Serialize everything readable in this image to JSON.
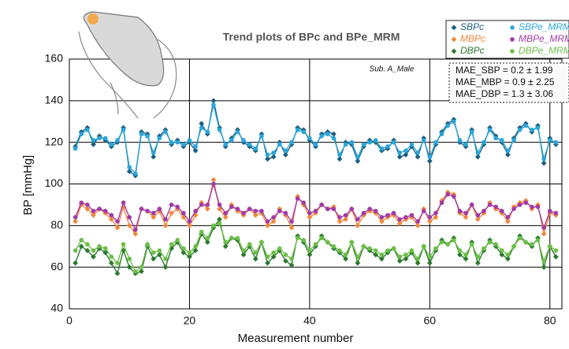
{
  "chart_data": {
    "type": "line",
    "title": "Trend plots of BPc and BPe_MRM",
    "x_label": "Measurement number",
    "y_label": "BP  [mmHg]",
    "annotations": [
      "Sub. A_Male",
      "MAE_SBP = 0.2 ± 1.99",
      "MAE_MBP = 0.9 ± 2.25",
      "MAE_DBP = 1.3 ± 3.06"
    ],
    "x": [
      1,
      2,
      3,
      4,
      5,
      6,
      7,
      8,
      9,
      10,
      11,
      12,
      13,
      14,
      15,
      16,
      17,
      18,
      19,
      20,
      21,
      22,
      23,
      24,
      25,
      26,
      27,
      28,
      29,
      30,
      31,
      32,
      33,
      34,
      35,
      36,
      37,
      38,
      39,
      40,
      41,
      42,
      43,
      44,
      45,
      46,
      47,
      48,
      49,
      50,
      51,
      52,
      53,
      54,
      55,
      56,
      57,
      58,
      59,
      60,
      61,
      62,
      63,
      64,
      65,
      66,
      67,
      68,
      69,
      70,
      71,
      72,
      73,
      74,
      75,
      76,
      77,
      78,
      79,
      80,
      81
    ],
    "xlim": [
      0,
      82
    ],
    "xticks": [
      0,
      20,
      40,
      60,
      80
    ],
    "ylim": [
      40,
      160
    ],
    "yticks": [
      40,
      60,
      80,
      100,
      120,
      140,
      160
    ],
    "grid": true,
    "legend": "upper right",
    "series": [
      {
        "name": "SBPc",
        "color": "#1d5f80",
        "marker": "diamond",
        "values": [
          118,
          125,
          127,
          119,
          123,
          121,
          118,
          120,
          127,
          106,
          104,
          125,
          124,
          113,
          123,
          126,
          119,
          121,
          118,
          120,
          116,
          129,
          124,
          140,
          127,
          118,
          122,
          126,
          120,
          118,
          116,
          124,
          112,
          113,
          120,
          114,
          119,
          127,
          126,
          121,
          118,
          124,
          125,
          124,
          112,
          120,
          119,
          111,
          118,
          121,
          120,
          116,
          117,
          121,
          113,
          114,
          118,
          113,
          122,
          111,
          119,
          125,
          129,
          131,
          120,
          118,
          126,
          113,
          119,
          127,
          123,
          120,
          114,
          122,
          127,
          129,
          125,
          128,
          110,
          122,
          119
        ]
      },
      {
        "name": "SBPe_MRM",
        "color": "#2aa6d9",
        "marker": "circle",
        "values": [
          117,
          124,
          126,
          121,
          122,
          122,
          119,
          121,
          126,
          108,
          105,
          124,
          123,
          115,
          122,
          125,
          120,
          120,
          119,
          121,
          118,
          127,
          125,
          138,
          126,
          119,
          121,
          125,
          121,
          119,
          117,
          123,
          114,
          115,
          119,
          116,
          120,
          126,
          125,
          122,
          119,
          123,
          124,
          122,
          114,
          119,
          120,
          113,
          119,
          120,
          121,
          117,
          118,
          120,
          115,
          116,
          119,
          115,
          121,
          113,
          120,
          124,
          128,
          130,
          121,
          119,
          125,
          115,
          120,
          126,
          122,
          121,
          116,
          121,
          126,
          128,
          126,
          127,
          112,
          121,
          120
        ]
      },
      {
        "name": "MBPc",
        "color": "#f0883a",
        "marker": "diamond",
        "values": [
          82,
          90,
          88,
          85,
          88,
          86,
          83,
          79,
          89,
          80,
          76,
          88,
          87,
          84,
          87,
          80,
          86,
          88,
          84,
          80,
          85,
          91,
          88,
          102,
          88,
          84,
          90,
          87,
          85,
          88,
          85,
          86,
          80,
          82,
          88,
          85,
          79,
          94,
          90,
          84,
          86,
          90,
          88,
          89,
          82,
          83,
          88,
          80,
          85,
          87,
          86,
          82,
          84,
          85,
          81,
          83,
          84,
          80,
          88,
          82,
          84,
          92,
          96,
          95,
          86,
          84,
          90,
          83,
          86,
          91,
          88,
          86,
          82,
          89,
          91,
          92,
          88,
          90,
          76,
          86,
          85
        ]
      },
      {
        "name": "MBPe_MRM",
        "color": "#a23aa8",
        "marker": "circle",
        "values": [
          84,
          91,
          90,
          87,
          88,
          87,
          85,
          82,
          91,
          84,
          78,
          88,
          87,
          86,
          88,
          83,
          90,
          89,
          86,
          82,
          87,
          90,
          90,
          100,
          90,
          86,
          89,
          88,
          86,
          88,
          87,
          87,
          82,
          84,
          87,
          86,
          82,
          93,
          91,
          86,
          87,
          90,
          88,
          88,
          84,
          85,
          88,
          83,
          86,
          88,
          87,
          84,
          85,
          86,
          83,
          84,
          85,
          82,
          87,
          84,
          86,
          91,
          95,
          94,
          87,
          86,
          90,
          85,
          87,
          90,
          89,
          87,
          84,
          88,
          90,
          91,
          89,
          89,
          79,
          87,
          86
        ]
      },
      {
        "name": "DBPc",
        "color": "#2b7a2e",
        "marker": "diamond",
        "values": [
          62,
          70,
          68,
          65,
          69,
          67,
          62,
          57,
          68,
          60,
          57,
          58,
          70,
          64,
          66,
          60,
          69,
          72,
          67,
          65,
          68,
          76,
          72,
          79,
          83,
          70,
          74,
          73,
          66,
          70,
          64,
          72,
          62,
          65,
          68,
          63,
          61,
          75,
          72,
          66,
          70,
          75,
          72,
          69,
          67,
          64,
          72,
          62,
          70,
          68,
          66,
          64,
          67,
          69,
          63,
          64,
          67,
          62,
          70,
          62,
          68,
          73,
          71,
          74,
          66,
          64,
          72,
          62,
          68,
          73,
          70,
          66,
          64,
          70,
          75,
          72,
          70,
          74,
          60,
          70,
          65
        ]
      },
      {
        "name": "DBPe_MRM",
        "color": "#6cbf48",
        "marker": "circle",
        "values": [
          68,
          73,
          71,
          68,
          70,
          69,
          65,
          62,
          71,
          64,
          58,
          60,
          71,
          67,
          68,
          64,
          71,
          73,
          69,
          67,
          70,
          77,
          74,
          80,
          81,
          72,
          74,
          74,
          68,
          71,
          67,
          72,
          65,
          67,
          69,
          66,
          64,
          74,
          73,
          68,
          71,
          74,
          72,
          70,
          68,
          66,
          72,
          65,
          70,
          69,
          68,
          66,
          68,
          69,
          65,
          66,
          68,
          64,
          70,
          65,
          69,
          72,
          71,
          73,
          68,
          66,
          71,
          65,
          69,
          72,
          71,
          68,
          66,
          70,
          74,
          72,
          71,
          73,
          63,
          70,
          68
        ]
      }
    ]
  }
}
